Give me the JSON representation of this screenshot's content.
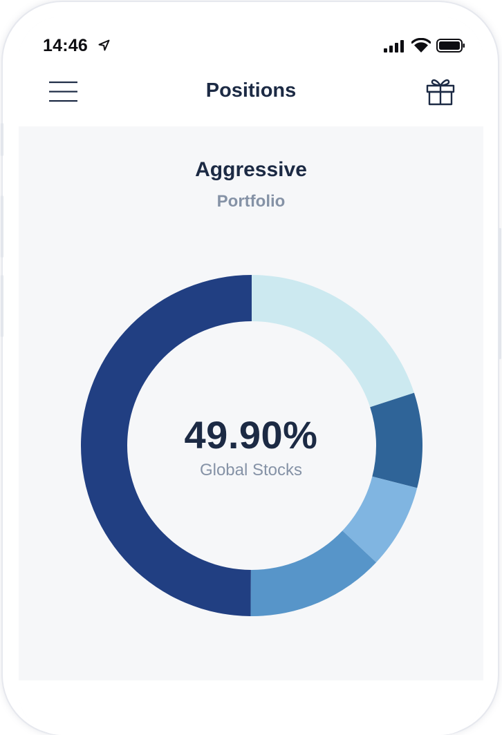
{
  "status_bar": {
    "time": "14:46",
    "location_icon": "location-arrow-icon",
    "signal_icon": "cellular-signal-icon",
    "wifi_icon": "wifi-icon",
    "battery_icon": "battery-icon"
  },
  "nav": {
    "title": "Positions",
    "menu_icon": "hamburger-menu-icon",
    "gift_icon": "gift-icon"
  },
  "portfolio": {
    "name": "Aggressive",
    "subtitle": "Portfolio"
  },
  "chart_data": {
    "type": "pie",
    "subtype": "donut",
    "selected": {
      "value": "49.90%",
      "label": "Global Stocks"
    },
    "slices": [
      {
        "value": 20.0,
        "color": "#cce9f0"
      },
      {
        "value": 9.0,
        "color": "#2f6498"
      },
      {
        "value": 8.0,
        "color": "#80b5e1"
      },
      {
        "value": 13.1,
        "color": "#5795c9"
      },
      {
        "value": 49.9,
        "color": "#213f82"
      }
    ]
  },
  "colors": {
    "title_text": "#1c2a44",
    "muted_text": "#8592a6",
    "screen_background": "#f6f7f9"
  }
}
